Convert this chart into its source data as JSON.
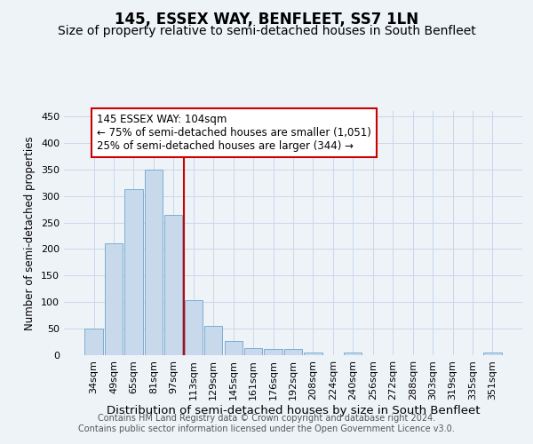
{
  "title": "145, ESSEX WAY, BENFLEET, SS7 1LN",
  "subtitle": "Size of property relative to semi-detached houses in South Benfleet",
  "xlabel": "Distribution of semi-detached houses by size in South Benfleet",
  "ylabel": "Number of semi-detached properties",
  "categories": [
    "34sqm",
    "49sqm",
    "65sqm",
    "81sqm",
    "97sqm",
    "113sqm",
    "129sqm",
    "145sqm",
    "161sqm",
    "176sqm",
    "192sqm",
    "208sqm",
    "224sqm",
    "240sqm",
    "256sqm",
    "272sqm",
    "288sqm",
    "303sqm",
    "319sqm",
    "335sqm",
    "351sqm"
  ],
  "values": [
    50,
    210,
    313,
    350,
    265,
    104,
    55,
    27,
    13,
    11,
    11,
    5,
    0,
    5,
    0,
    0,
    0,
    0,
    0,
    0,
    5
  ],
  "bar_color": "#c9d9ec",
  "bar_edge_color": "#7aaed4",
  "vline_x": 4.5,
  "vline_color": "#cc0000",
  "annotation_text": "145 ESSEX WAY: 104sqm\n← 75% of semi-detached houses are smaller (1,051)\n25% of semi-detached houses are larger (344) →",
  "annotation_box_facecolor": "#ffffff",
  "annotation_box_edgecolor": "#cc0000",
  "ylim": [
    0,
    460
  ],
  "yticks": [
    0,
    50,
    100,
    150,
    200,
    250,
    300,
    350,
    400,
    450
  ],
  "grid_color": "#c8d8ea",
  "background_color": "#eef3f8",
  "footer": "Contains HM Land Registry data © Crown copyright and database right 2024.\nContains public sector information licensed under the Open Government Licence v3.0.",
  "title_fontsize": 12,
  "subtitle_fontsize": 10,
  "xlabel_fontsize": 9.5,
  "ylabel_fontsize": 8.5,
  "tick_fontsize": 8,
  "annotation_fontsize": 8.5,
  "footer_fontsize": 7
}
